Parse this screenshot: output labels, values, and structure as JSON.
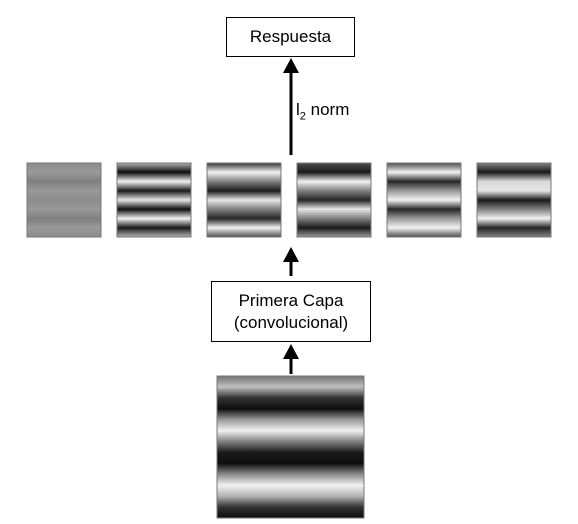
{
  "response_box": {
    "label": "Respuesta"
  },
  "conv_box": {
    "line1": "Primera Capa",
    "line2": "(convolucional)"
  },
  "norm_label": {
    "prefix": "l",
    "subscript": "2",
    "suffix": " norm"
  },
  "feature_maps": [
    {
      "stripes": [
        0.55,
        0.6,
        0.5,
        0.6,
        0.55,
        0.6,
        0.5,
        0.6,
        0.55
      ]
    },
    {
      "stripes": [
        0.7,
        0.05,
        0.95,
        0.1,
        0.9,
        0.05,
        0.95,
        0.1,
        0.7
      ]
    },
    {
      "stripes": [
        0.2,
        0.95,
        0.5,
        0.1,
        0.9,
        0.5,
        0.15,
        0.95,
        0.3
      ]
    },
    {
      "stripes": [
        0.3,
        0.1,
        0.95,
        0.5,
        0.15,
        0.9,
        0.5,
        0.1,
        0.6
      ]
    },
    {
      "stripes": [
        0.3,
        0.95,
        0.15,
        0.6,
        0.95,
        0.15,
        0.6,
        0.95,
        0.3
      ]
    },
    {
      "stripes": [
        0.5,
        0.1,
        0.85,
        0.9,
        0.1,
        0.5,
        0.95,
        0.15,
        0.5
      ]
    }
  ],
  "input_image": {
    "stripes": [
      0.45,
      0.75,
      0.2,
      0.05,
      0.6,
      0.95,
      0.5,
      0.1,
      0.05,
      0.55,
      0.95,
      0.7,
      0.2,
      0.05
    ]
  }
}
